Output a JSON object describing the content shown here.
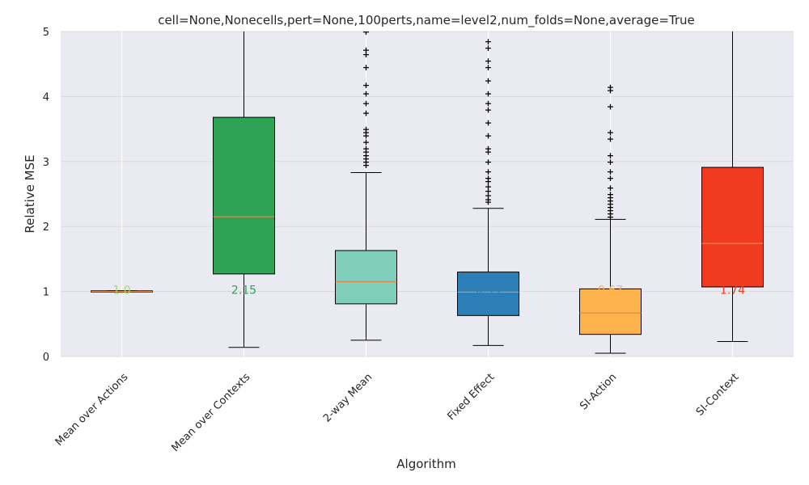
{
  "chart_data": {
    "type": "box",
    "title": "cell=None,Nonecells,pert=None,100perts,name=level2,num_folds=None,average=True",
    "xlabel": "Algorithm",
    "ylabel": "Relative MSE",
    "ylim": [
      0,
      5
    ],
    "yticks": [
      "0",
      "1",
      "2",
      "3",
      "4",
      "5"
    ],
    "grid": true,
    "categories": [
      "Mean over Actions",
      "Mean over Contexts",
      "2-way Mean",
      "Fixed Effect",
      "SI-Action",
      "SI-Context"
    ],
    "boxes": [
      {
        "name": "Mean over Actions",
        "whisker_low": 1.0,
        "q1": 1.0,
        "median": 1.0,
        "q3": 1.01,
        "whisker_high": 1.01,
        "fliers": [],
        "median_label": "1.0",
        "color": "#a6d96a",
        "label_color": "#a6d96a"
      },
      {
        "name": "Mean over Contexts",
        "whisker_low": 0.14,
        "q1": 1.27,
        "median": 2.15,
        "q3": 3.68,
        "whisker_high": 5.5,
        "fliers": [],
        "median_label": "2.15",
        "color": "#2ea355",
        "label_color": "#2ea355"
      },
      {
        "name": "2-way Mean",
        "whisker_low": 0.25,
        "q1": 0.81,
        "median": 1.15,
        "q3": 1.63,
        "whisker_high": 2.83,
        "fliers": [
          2.95,
          3.0,
          3.05,
          3.1,
          3.15,
          3.2,
          3.3,
          3.4,
          3.45,
          3.5,
          3.75,
          3.9,
          4.05,
          4.18,
          4.45,
          4.65,
          4.72,
          5.0
        ],
        "median_label": "1.15",
        "color": "#7fcdbb",
        "label_color": "#7fcdbb"
      },
      {
        "name": "Fixed Effect",
        "whisker_low": 0.17,
        "q1": 0.63,
        "median": 0.99,
        "q3": 1.3,
        "whisker_high": 2.28,
        "fliers": [
          2.38,
          2.42,
          2.48,
          2.55,
          2.62,
          2.7,
          2.75,
          2.85,
          3.0,
          3.15,
          3.2,
          3.4,
          3.6,
          3.8,
          3.9,
          4.05,
          4.25,
          4.45,
          4.55,
          4.75,
          4.85
        ],
        "median_label": "0.99",
        "color": "#2c7fb8",
        "label_color": "#2c7fb8"
      },
      {
        "name": "SI-Action",
        "whisker_low": 0.05,
        "q1": 0.34,
        "median": 0.67,
        "q3": 1.04,
        "whisker_high": 2.11,
        "fliers": [
          2.15,
          2.2,
          2.25,
          2.3,
          2.35,
          2.4,
          2.45,
          2.5,
          2.6,
          2.75,
          2.85,
          3.0,
          3.1,
          3.35,
          3.45,
          3.85,
          4.1,
          4.15
        ],
        "median_label": "0.67",
        "color": "#feb24c",
        "label_color": "#feb24c"
      },
      {
        "name": "SI-Context",
        "whisker_low": 0.23,
        "q1": 1.07,
        "median": 1.74,
        "q3": 2.91,
        "whisker_high": 5.5,
        "fliers": [],
        "median_label": "1.74",
        "color": "#f03b20",
        "label_color": "#f03b20"
      }
    ]
  }
}
